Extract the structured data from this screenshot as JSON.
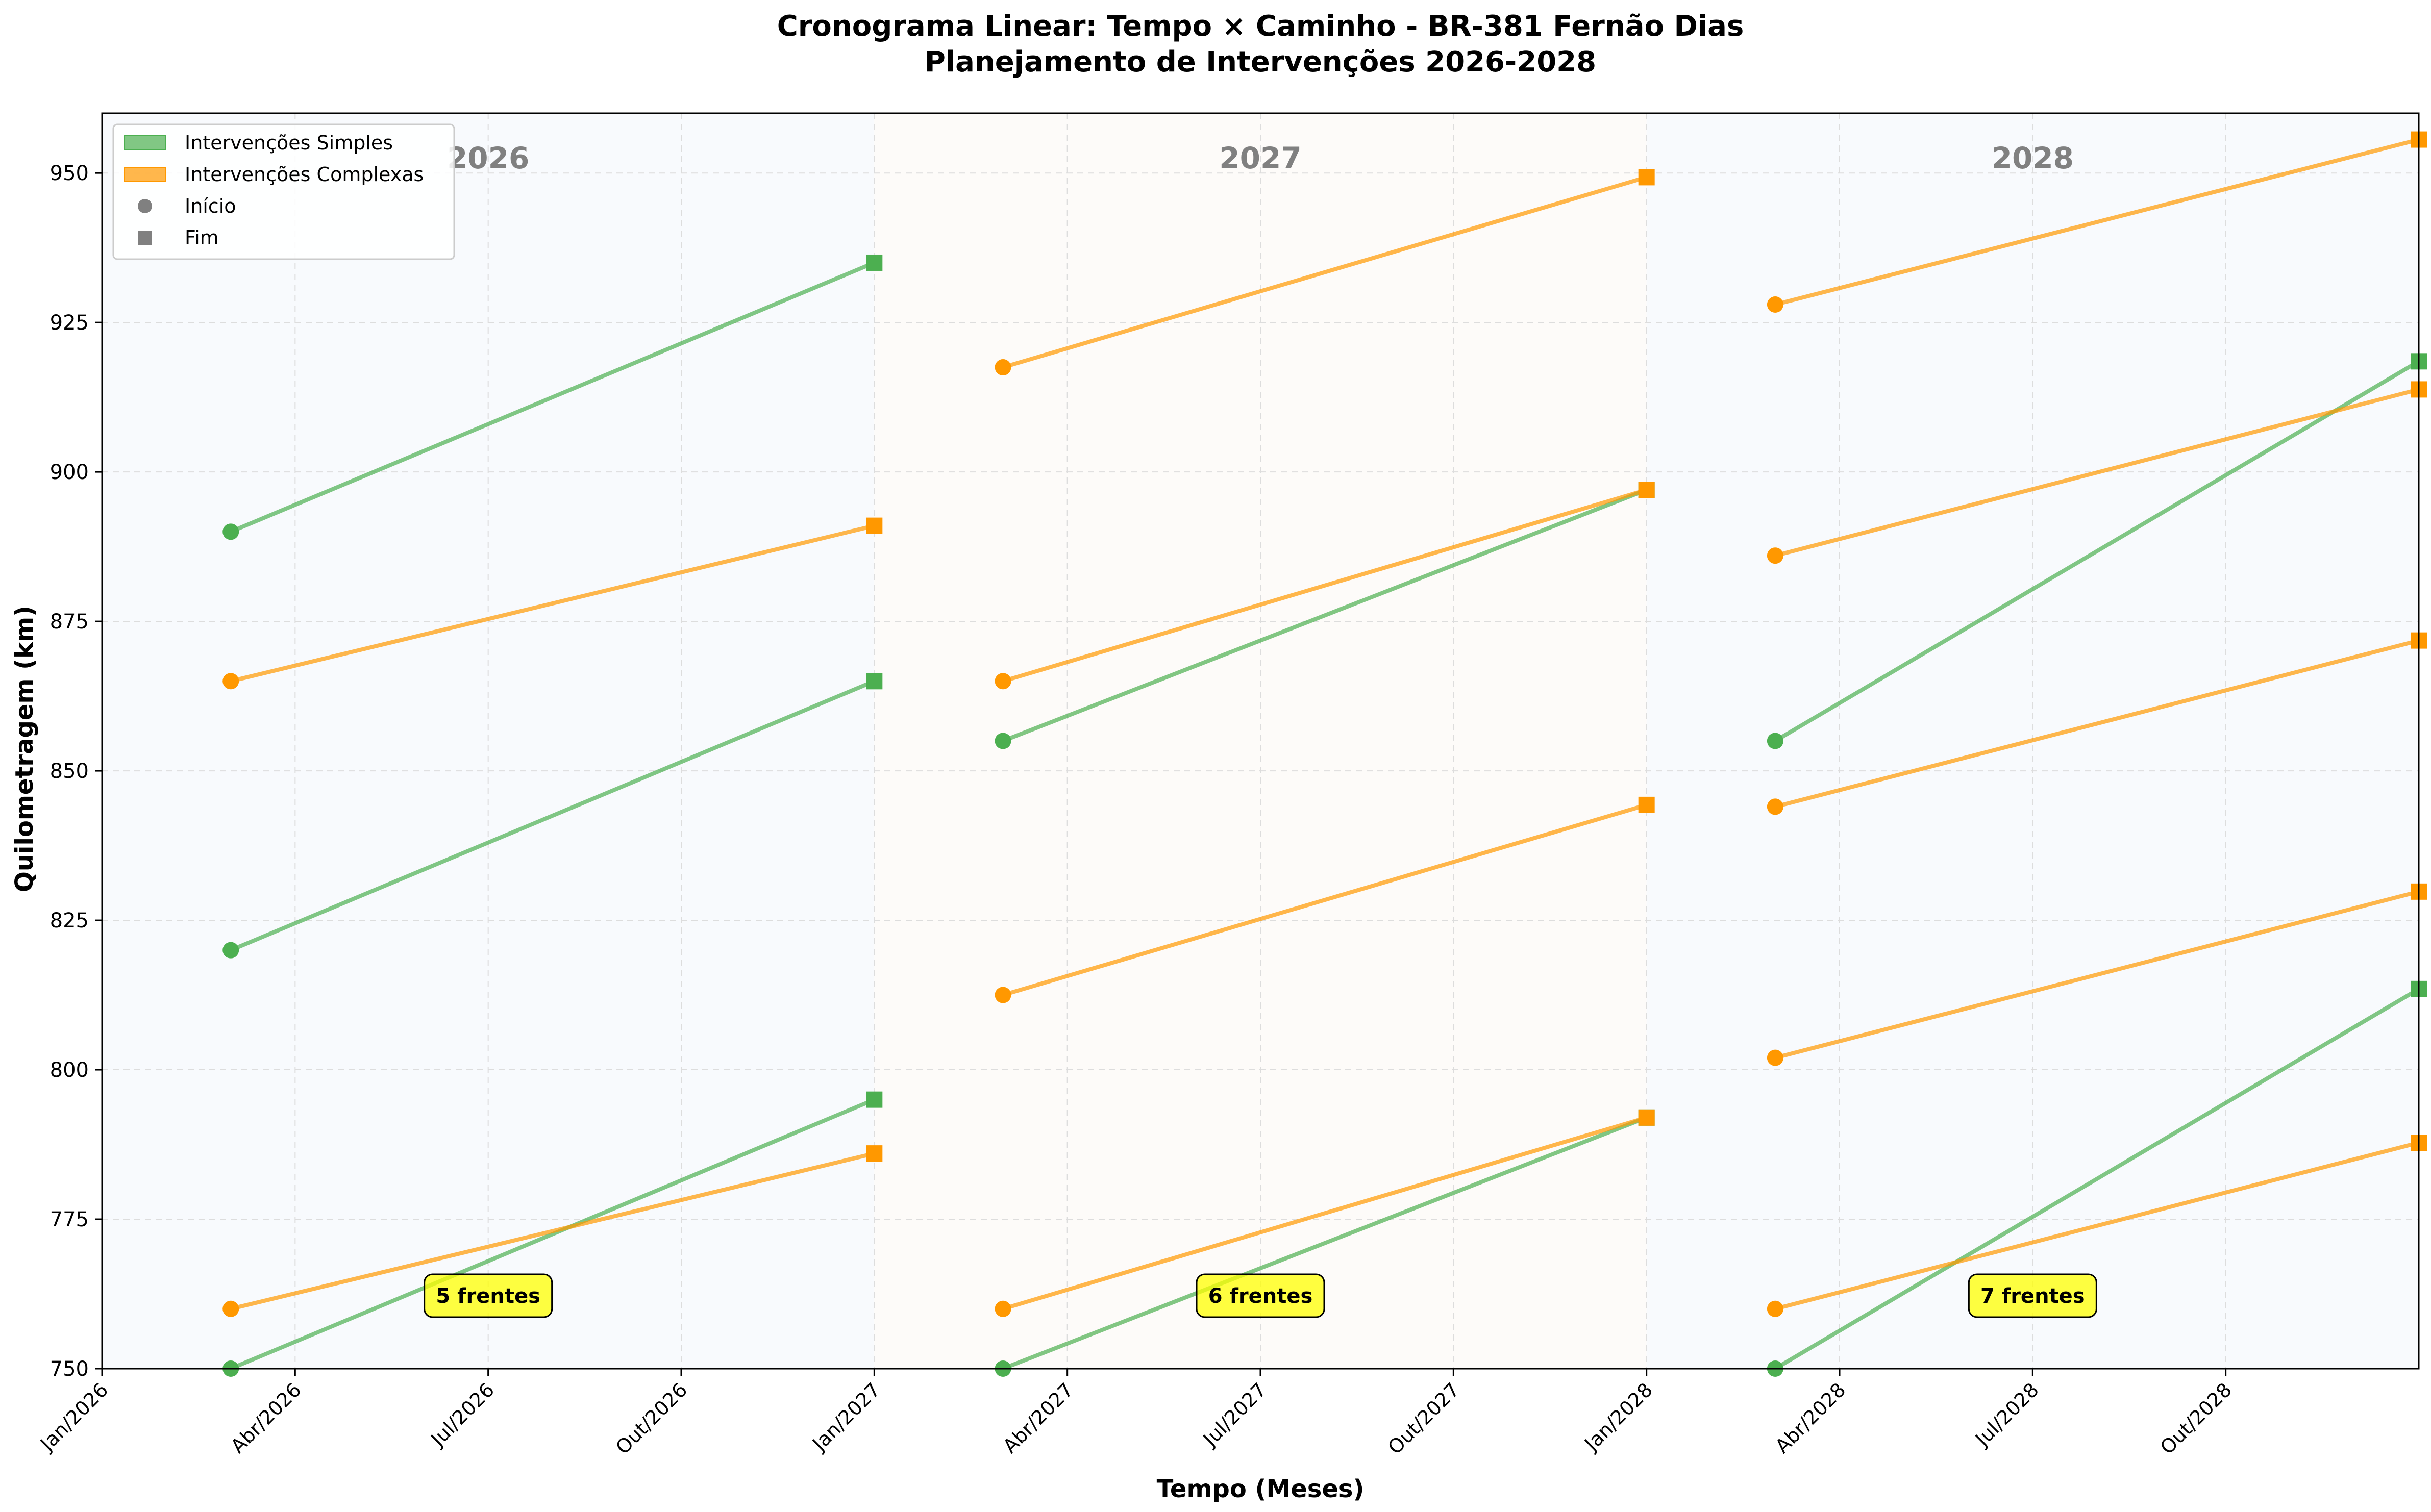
{
  "chart_data": {
    "type": "line",
    "title": "Cronograma Linear: Tempo × Caminho - BR-381 Fernão Dias",
    "subtitle": "Planejamento de Intervenções 2026-2028",
    "xlabel": "Tempo (Meses)",
    "ylabel": "Quilometragem (km)",
    "xlim": [
      0,
      36
    ],
    "ylim": [
      750,
      960
    ],
    "grid": true,
    "x_ticks": [
      {
        "value": 0,
        "label": "Jan/2026"
      },
      {
        "value": 3,
        "label": "Abr/2026"
      },
      {
        "value": 6,
        "label": "Jul/2026"
      },
      {
        "value": 9,
        "label": "Out/2026"
      },
      {
        "value": 12,
        "label": "Jan/2027"
      },
      {
        "value": 15,
        "label": "Abr/2027"
      },
      {
        "value": 18,
        "label": "Jul/2027"
      },
      {
        "value": 21,
        "label": "Out/2027"
      },
      {
        "value": 24,
        "label": "Jan/2028"
      },
      {
        "value": 27,
        "label": "Abr/2028"
      },
      {
        "value": 30,
        "label": "Jul/2028"
      },
      {
        "value": 33,
        "label": "Out/2028"
      }
    ],
    "y_ticks": [
      750,
      775,
      800,
      825,
      850,
      875,
      900,
      925,
      950
    ],
    "years": [
      {
        "label": "2026",
        "start": 0,
        "end": 12,
        "color": "#f8fafd",
        "fronts": "5 frentes"
      },
      {
        "label": "2027",
        "start": 12,
        "end": 24,
        "color": "#fdfbf9",
        "fronts": "6 frentes"
      },
      {
        "label": "2028",
        "start": 24,
        "end": 36,
        "color": "#f8fafd",
        "fronts": "7 frentes"
      }
    ],
    "legend": {
      "placement": "top-left",
      "entries": [
        {
          "label": "Intervenções Simples",
          "kind": "patch",
          "color": "#4caf50"
        },
        {
          "label": "Intervenções Complexas",
          "kind": "patch",
          "color": "#ff9800"
        },
        {
          "label": "Início",
          "kind": "circle",
          "color": "#808080"
        },
        {
          "label": "Fim",
          "kind": "square",
          "color": "#808080"
        }
      ]
    },
    "series": [
      {
        "name": "Intervenções Simples",
        "color": "#4caf50",
        "segments": [
          {
            "start": [
              2,
              890
            ],
            "end": [
              12,
              935
            ]
          },
          {
            "start": [
              2,
              820
            ],
            "end": [
              12,
              865
            ]
          },
          {
            "start": [
              2,
              750
            ],
            "end": [
              12,
              795
            ]
          },
          {
            "start": [
              14,
              855
            ],
            "end": [
              24,
              897
            ]
          },
          {
            "start": [
              14,
              750
            ],
            "end": [
              24,
              792
            ]
          },
          {
            "start": [
              26,
              855
            ],
            "end": [
              36,
              918.5
            ]
          },
          {
            "start": [
              26,
              750
            ],
            "end": [
              36,
              813.5
            ]
          }
        ]
      },
      {
        "name": "Intervenções Complexas",
        "color": "#ff9800",
        "segments": [
          {
            "start": [
              2,
              865
            ],
            "end": [
              12,
              891
            ]
          },
          {
            "start": [
              2,
              760
            ],
            "end": [
              12,
              786
            ]
          },
          {
            "start": [
              14,
              917.5
            ],
            "end": [
              24,
              949.3
            ]
          },
          {
            "start": [
              14,
              865
            ],
            "end": [
              24,
              897
            ]
          },
          {
            "start": [
              14,
              812.5
            ],
            "end": [
              24,
              844.3
            ]
          },
          {
            "start": [
              14,
              760
            ],
            "end": [
              24,
              792
            ]
          },
          {
            "start": [
              26,
              928
            ],
            "end": [
              36,
              955.6
            ]
          },
          {
            "start": [
              26,
              886
            ],
            "end": [
              36,
              913.8
            ]
          },
          {
            "start": [
              26,
              844
            ],
            "end": [
              36,
              871.8
            ]
          },
          {
            "start": [
              26,
              802
            ],
            "end": [
              36,
              829.8
            ]
          },
          {
            "start": [
              26,
              760
            ],
            "end": [
              36,
              787.8
            ]
          }
        ]
      }
    ]
  }
}
